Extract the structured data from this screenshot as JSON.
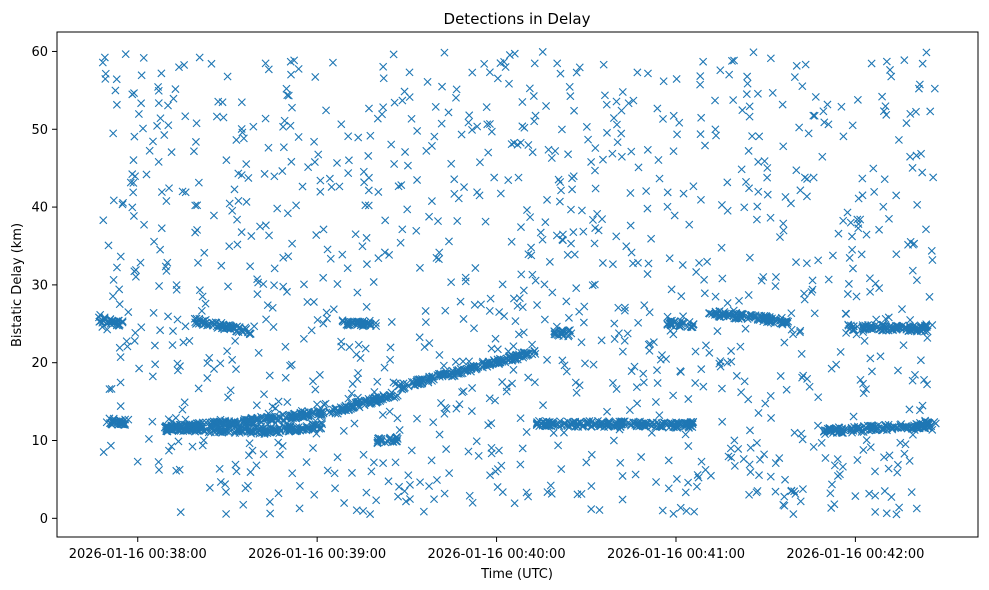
{
  "chart_data": {
    "type": "scatter",
    "title": "Detections in Delay",
    "xlabel": "Time (UTC)",
    "ylabel": "Bistatic Delay (km)",
    "marker": "x",
    "color": "#1f77b4",
    "grid": false,
    "legend": "none",
    "x_type": "time",
    "xlim": [
      "2026-01-16 00:37:33",
      "2026-01-16 00:42:41"
    ],
    "ylim": [
      -2.4,
      62.5
    ],
    "xticks": [
      "2026-01-16 00:38:00",
      "2026-01-16 00:39:00",
      "2026-01-16 00:40:00",
      "2026-01-16 00:41:00",
      "2026-01-16 00:42:00"
    ],
    "yticks": [
      0,
      10,
      20,
      30,
      40,
      50,
      60
    ],
    "data_range": {
      "x": [
        "2026-01-16 00:37:47",
        "2026-01-16 00:42:27"
      ],
      "y": [
        0.5,
        60
      ]
    },
    "tracks": [
      {
        "x": [
          "2026-01-16 00:38:09",
          "2026-01-16 00:38:35",
          "2026-01-16 00:39:04",
          "2026-01-16 00:39:27"
        ],
        "y": [
          11.5,
          12.4,
          13.6,
          16.0
        ]
      },
      {
        "x": [
          "2026-01-16 00:39:27",
          "2026-01-16 00:40:13"
        ],
        "y": [
          16.8,
          21.4
        ]
      },
      {
        "x": [
          "2026-01-16 00:38:09",
          "2026-01-16 00:38:44",
          "2026-01-16 00:39:02"
        ],
        "y": [
          11.6,
          11.2,
          11.9
        ]
      },
      {
        "x": [
          "2026-01-16 00:40:13",
          "2026-01-16 00:41:06"
        ],
        "y": [
          12.2,
          12.0
        ]
      },
      {
        "x": [
          "2026-01-16 00:37:49",
          "2026-01-16 00:37:57"
        ],
        "y": [
          12.5,
          12.3
        ]
      },
      {
        "x": [
          "2026-01-16 00:41:49",
          "2026-01-16 00:42:27"
        ],
        "y": [
          11.2,
          12.0
        ]
      },
      {
        "x": [
          "2026-01-16 00:38:19",
          "2026-01-16 00:38:38"
        ],
        "y": [
          25.4,
          24.0
        ]
      },
      {
        "x": [
          "2026-01-16 00:41:11",
          "2026-01-16 00:41:32"
        ],
        "y": [
          26.4,
          25.6
        ]
      },
      {
        "x": [
          "2026-01-16 00:41:57",
          "2026-01-16 00:42:24"
        ],
        "y": [
          24.6,
          24.4
        ]
      },
      {
        "x": [
          "2026-01-16 00:37:47",
          "2026-01-16 00:37:55"
        ],
        "y": [
          25.6,
          25.0
        ]
      },
      {
        "x": [
          "2026-01-16 00:39:08",
          "2026-01-16 00:39:18"
        ],
        "y": [
          25.2,
          25.0
        ]
      },
      {
        "x": [
          "2026-01-16 00:40:57",
          "2026-01-16 00:41:06"
        ],
        "y": [
          25.2,
          24.8
        ]
      },
      {
        "x": [
          "2026-01-16 00:41:30",
          "2026-01-16 00:41:38"
        ],
        "y": [
          25.6,
          25.0
        ]
      },
      {
        "x": [
          "2026-01-16 00:39:20",
          "2026-01-16 00:39:27"
        ],
        "y": [
          10.0,
          10.2
        ]
      },
      {
        "x": [
          "2026-01-16 00:40:19",
          "2026-01-16 00:40:25"
        ],
        "y": [
          23.8,
          23.8
        ]
      }
    ],
    "scatter_points": 1150
  }
}
